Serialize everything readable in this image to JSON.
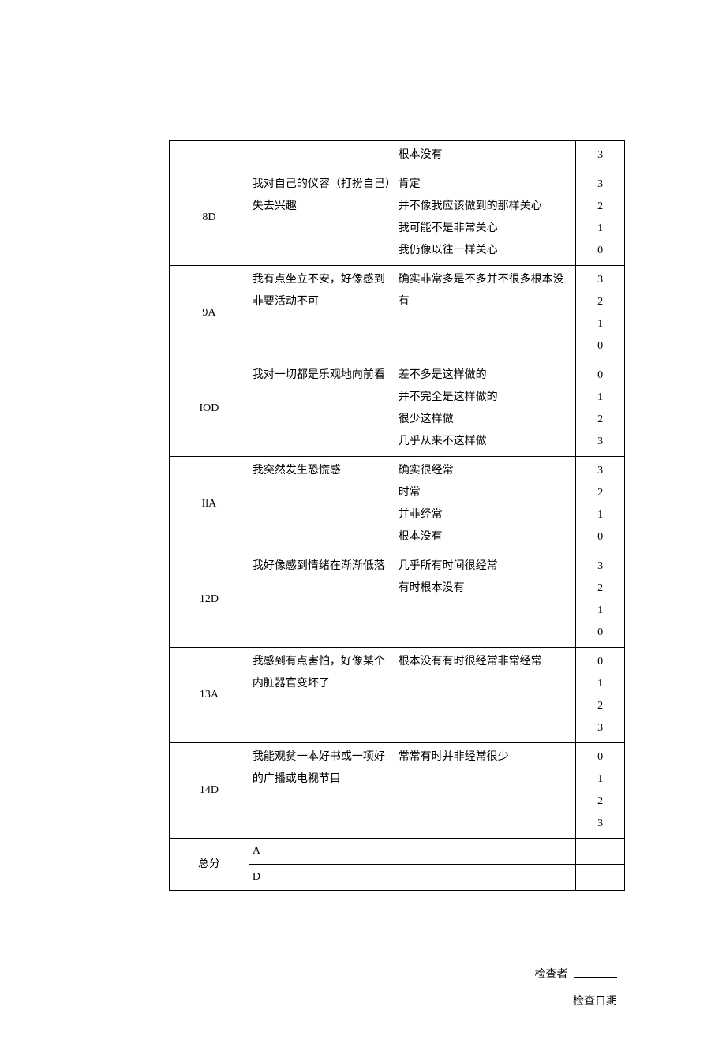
{
  "table": {
    "border_color": "#000000",
    "background_color": "#ffffff",
    "text_color": "#000000",
    "font_size_pt": 10.5,
    "columns": [
      "code",
      "question",
      "options",
      "scores"
    ],
    "col_widths_pct": [
      17,
      32,
      40,
      11
    ],
    "rows": [
      {
        "code": "",
        "question": "",
        "options": [
          "根本没有"
        ],
        "scores": [
          "3"
        ]
      },
      {
        "code": "8D",
        "question": "我对自己的仪容（打扮自己）失去兴趣",
        "options": [
          "肯定",
          "并不像我应该做到的那样关心",
          "我可能不是非常关心",
          "我仍像以往一样关心"
        ],
        "scores": [
          "3",
          "2",
          "1",
          "0"
        ]
      },
      {
        "code": "9A",
        "question": "我有点坐立不安，好像感到非要活动不可",
        "options": [
          "确实非常多是不多并不很多根本没有"
        ],
        "scores": [
          "3",
          "2",
          "1",
          "0"
        ]
      },
      {
        "code": "IOD",
        "question": "我对一切都是乐观地向前看",
        "options": [
          "差不多是这样做的",
          "并不完全是这样做的",
          "很少这样做",
          "几乎从来不这样做"
        ],
        "scores": [
          "0",
          "1",
          "2",
          "3"
        ]
      },
      {
        "code": "IlA",
        "question": "我突然发生恐慌感",
        "options": [
          "确实很经常",
          "时常",
          "并非经常",
          "根本没有"
        ],
        "scores": [
          "3",
          "2",
          "1",
          "0"
        ]
      },
      {
        "code": "12D",
        "question": "我好像感到情绪在渐渐低落",
        "options": [
          "几乎所有时间很经常",
          "有时根本没有"
        ],
        "scores": [
          "3",
          "2",
          "1",
          "0"
        ]
      },
      {
        "code": "13A",
        "question": "我感到有点害怕，好像某个内脏器官变坏了",
        "options": [
          "根本没有有时很经常非常经常"
        ],
        "scores": [
          "0",
          "1",
          "2",
          "3"
        ]
      },
      {
        "code": "14D",
        "question": "我能观贫一本好书或一项好的广播或电视节目",
        "options": [
          "常常有时并非经常很少"
        ],
        "scores": [
          "0",
          "1",
          "2",
          "3"
        ]
      }
    ],
    "total": {
      "label": "总分",
      "subrows": [
        "A",
        "D"
      ]
    }
  },
  "footer": {
    "inspector_label": "检查者",
    "date_label": "检查日期"
  }
}
